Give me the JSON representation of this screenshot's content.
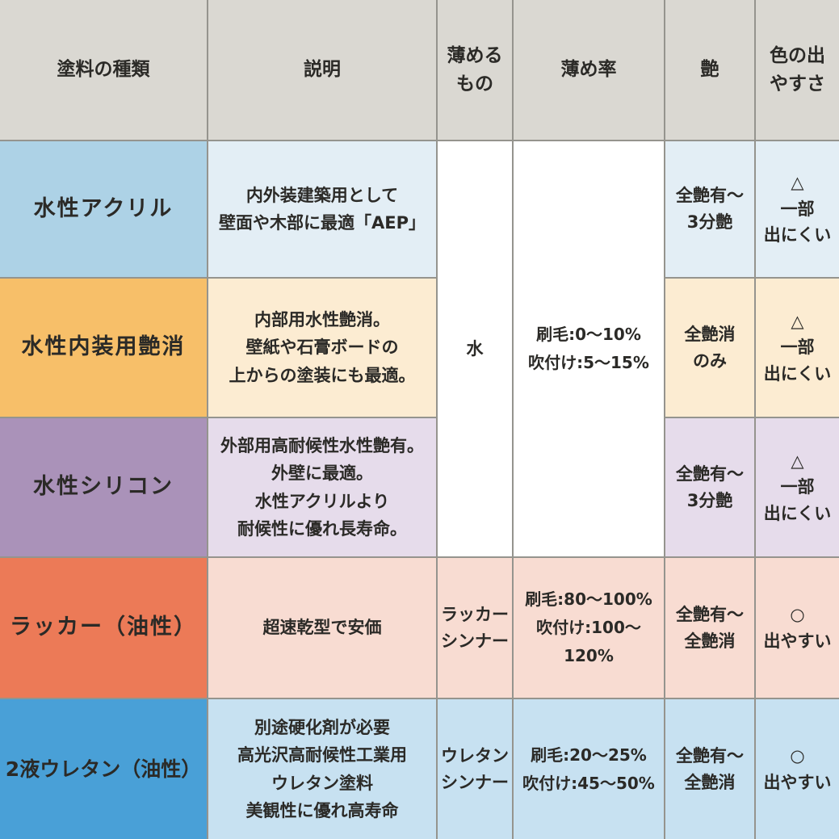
{
  "table": {
    "headers": {
      "paint_type": "塗料の種類",
      "description": "説明",
      "thinner": "薄める\nもの",
      "dilution_rate": "薄め率",
      "gloss": "艶",
      "color_ease": "色の出\nやすさ"
    },
    "merged": {
      "thinner_water": "水",
      "rate_water": "刷毛:0〜10%\n吹付け:5〜15%"
    },
    "rows": [
      {
        "name": "水性アクリル",
        "description": "内外装建築用として\n壁面や木部に最適「AEP」",
        "gloss": "全艶有〜\n3分艶",
        "color_ease": "△\n一部\n出にくい"
      },
      {
        "name": "水性内装用艶消",
        "description": "内部用水性艶消。\n壁紙や石膏ボードの\n上からの塗装にも最適。",
        "gloss": "全艶消\nのみ",
        "color_ease": "△\n一部\n出にくい"
      },
      {
        "name": "水性シリコン",
        "description": "外部用高耐候性水性艶有。\n外壁に最適。\n水性アクリルより\n耐候性に優れ長寿命。",
        "gloss": "全艶有〜\n3分艶",
        "color_ease": "△\n一部\n出にくい"
      },
      {
        "name": "ラッカー（油性）",
        "description": "超速乾型で安価",
        "thinner": "ラッカー\nシンナー",
        "dilution_rate": "刷毛:80〜100%\n吹付け:100〜120%",
        "gloss": "全艶有〜\n全艶消",
        "color_ease": "○\n出やすい"
      },
      {
        "name": "2液ウレタン（油性）",
        "description": "別途硬化剤が必要\n高光沢高耐候性工業用\nウレタン塗料\n美観性に優れ高寿命",
        "thinner": "ウレタン\nシンナー",
        "dilution_rate": "刷毛:20〜25%\n吹付け:45〜50%",
        "gloss": "全艶有〜\n全艶消",
        "color_ease": "○\n出やすい"
      }
    ]
  },
  "colors": {
    "header_bg": "#dad8d2",
    "grid_line": "#95948e",
    "white_cell": "#ffffff",
    "text": "#2b2a27",
    "rows": [
      {
        "name_bg": "#add2e6",
        "tint_bg": "#e3eef5"
      },
      {
        "name_bg": "#f7bf69",
        "tint_bg": "#fcecd2"
      },
      {
        "name_bg": "#aa92b9",
        "tint_bg": "#e6dceb"
      },
      {
        "name_bg": "#ec7a57",
        "tint_bg": "#f8dcd2"
      },
      {
        "name_bg": "#49a0d7",
        "tint_bg": "#c7e1f1"
      }
    ]
  }
}
